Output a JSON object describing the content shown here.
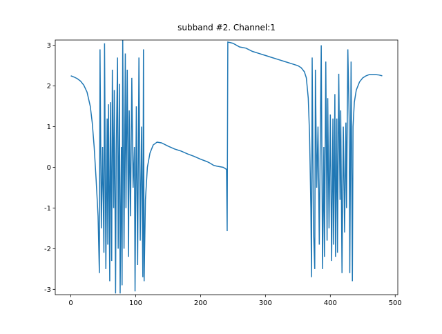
{
  "chart_data": {
    "type": "line",
    "title": "subband #2. Channel:1",
    "x": [
      0,
      5,
      10,
      15,
      20,
      25,
      30,
      33,
      36,
      39,
      42,
      44,
      45,
      47,
      49,
      51,
      52,
      54,
      56,
      57,
      58,
      60,
      61,
      63,
      64,
      66,
      67,
      69,
      70,
      72,
      73,
      75,
      76,
      78,
      79,
      80,
      82,
      84,
      85,
      87,
      89,
      90,
      92,
      94,
      96,
      98,
      99,
      101,
      103,
      105,
      107,
      109,
      111,
      112,
      113,
      115,
      118,
      122,
      127,
      133,
      140,
      150,
      160,
      170,
      180,
      190,
      200,
      210,
      215,
      220,
      225,
      235,
      240,
      241,
      242,
      250,
      260,
      270,
      280,
      290,
      300,
      310,
      320,
      330,
      340,
      350,
      355,
      360,
      363,
      366,
      368,
      370,
      371,
      372,
      374,
      376,
      377,
      379,
      381,
      383,
      385,
      386,
      388,
      390,
      391,
      393,
      395,
      396,
      398,
      400,
      402,
      404,
      405,
      407,
      408,
      410,
      411,
      413,
      415,
      416,
      418,
      420,
      422,
      424,
      425,
      427,
      429,
      430,
      432,
      434,
      435,
      437,
      440,
      445,
      450,
      455,
      460,
      470,
      475,
      480
    ],
    "series": [
      {
        "color": "#1f77b4",
        "values": [
          2.25,
          2.22,
          2.18,
          2.12,
          2.02,
          1.85,
          1.5,
          1.1,
          0.5,
          -0.3,
          -1.2,
          -2.6,
          2.9,
          -1.5,
          0.5,
          -2.1,
          3.05,
          -2.5,
          1.2,
          -1.9,
          1.55,
          -2.8,
          1.6,
          -2.3,
          2.4,
          -1.0,
          1.9,
          -3.1,
          0.3,
          2.7,
          -2.0,
          2.05,
          -3.1,
          0.5,
          -2.9,
          3.15,
          -2.0,
          2.8,
          -1.0,
          2.4,
          -2.2,
          1.4,
          -1.2,
          2.2,
          -0.5,
          0.5,
          -3.05,
          1.5,
          -2.4,
          2.7,
          -1.8,
          1.0,
          -2.7,
          2.9,
          -2.8,
          -0.8,
          0.0,
          0.35,
          0.55,
          0.62,
          0.6,
          0.52,
          0.45,
          0.4,
          0.33,
          0.27,
          0.2,
          0.14,
          0.1,
          0.05,
          0.03,
          0.0,
          -0.05,
          -1.57,
          3.08,
          3.05,
          2.96,
          2.93,
          2.85,
          2.8,
          2.75,
          2.7,
          2.65,
          2.6,
          2.55,
          2.5,
          2.45,
          2.35,
          2.2,
          1.7,
          0.8,
          -1.0,
          -2.7,
          2.7,
          -1.5,
          -2.5,
          2.4,
          -0.5,
          1.0,
          -1.9,
          1.5,
          3.0,
          -2.5,
          0.5,
          -2.2,
          2.6,
          -1.8,
          1.7,
          -1.5,
          1.3,
          -2.3,
          1.2,
          -1.9,
          1.8,
          -2.2,
          1.2,
          -2.1,
          2.3,
          -0.8,
          1.4,
          -2.6,
          1.0,
          -1.6,
          1.1,
          -1.0,
          2.9,
          1.2,
          -2.6,
          2.6,
          -2.8,
          1.0,
          1.6,
          1.9,
          2.1,
          2.2,
          2.25,
          2.28,
          2.28,
          2.27,
          2.25
        ]
      }
    ],
    "xlim": [
      -24,
      504
    ],
    "xticks": [
      0,
      100,
      200,
      300,
      400,
      500
    ],
    "ylim": [
      -3.13,
      3.13
    ],
    "yticks": [
      -3,
      -2,
      -1,
      0,
      1,
      2,
      3
    ]
  }
}
